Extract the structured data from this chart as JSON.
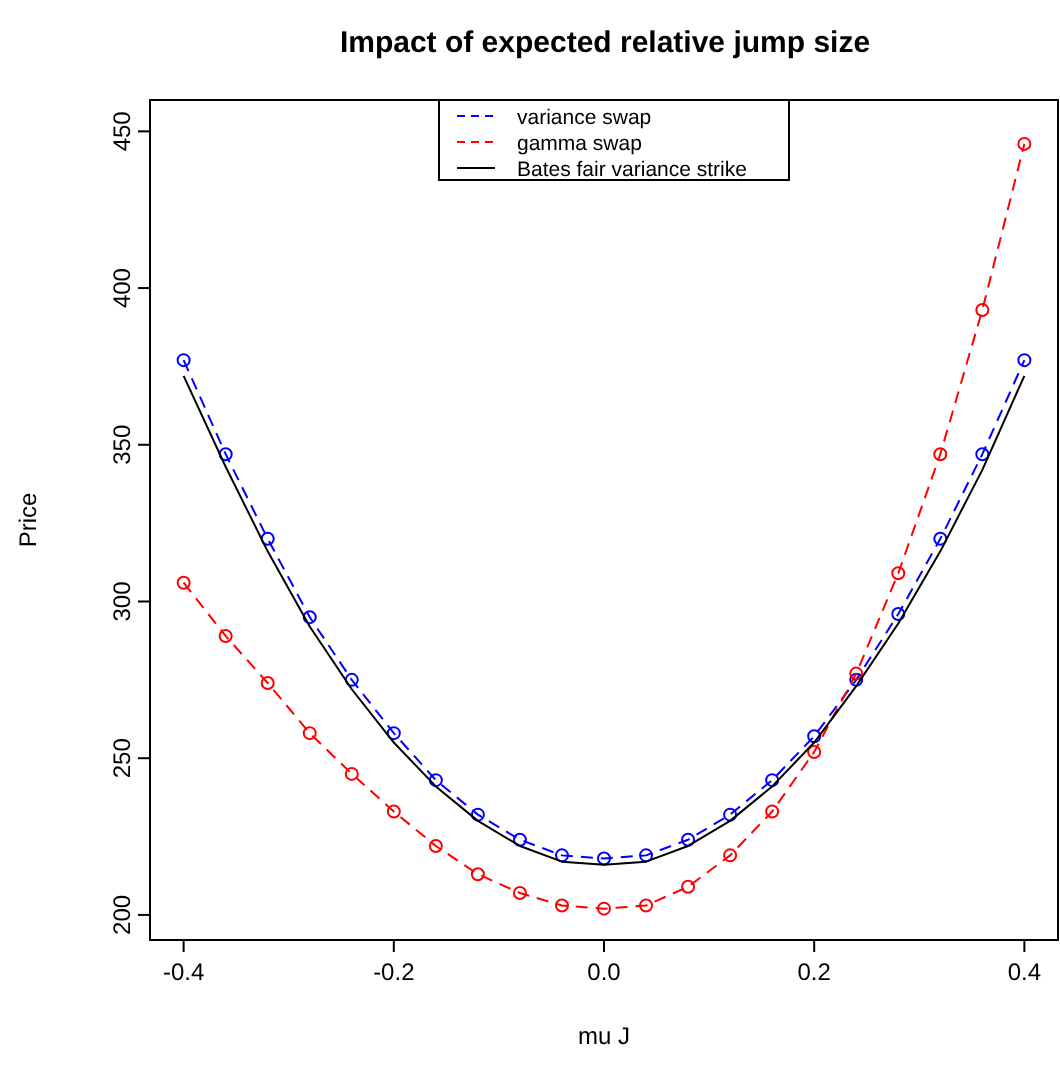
{
  "chart_data": {
    "type": "line",
    "title": "Impact of expected relative jump size",
    "xlabel": "mu J",
    "ylabel": "Price",
    "x": [
      -0.4,
      -0.36,
      -0.32,
      -0.28,
      -0.24,
      -0.2,
      -0.16,
      -0.12,
      -0.08,
      -0.04,
      0,
      0.04,
      0.08,
      0.12,
      0.16,
      0.2,
      0.24,
      0.28,
      0.32,
      0.36,
      0.4
    ],
    "xlim": [
      -0.432,
      0.432
    ],
    "xticks": [
      -0.4,
      -0.2,
      {
        "value": 0,
        "label": "0.0"
      },
      0.2,
      0.4
    ],
    "ylim": [
      192,
      460
    ],
    "yticks": [
      200,
      250,
      300,
      350,
      400,
      450
    ],
    "grid": false,
    "legend": "top",
    "series": [
      {
        "name": "variance swap",
        "color": "#0000ff",
        "marker": "circle",
        "line_style": "dashed",
        "values": [
          377,
          347,
          320,
          295,
          275,
          258,
          243,
          232,
          224,
          219,
          218,
          219,
          224,
          232,
          243,
          257,
          275,
          296,
          320,
          347,
          377
        ]
      },
      {
        "name": "gamma swap",
        "color": "#ff0000",
        "marker": "circle",
        "line_style": "dashed",
        "values": [
          306,
          289,
          274,
          258,
          245,
          233,
          222,
          213,
          207,
          203,
          202,
          203,
          209,
          219,
          233,
          252,
          277,
          309,
          347,
          393,
          446
        ]
      },
      {
        "name": "Bates fair variance strike",
        "color": "#000000",
        "marker": "none",
        "line_style": "solid",
        "values": [
          372,
          343,
          316,
          292,
          272,
          255,
          241,
          230,
          222,
          217,
          216,
          217,
          222,
          230,
          241,
          255,
          273,
          293,
          316,
          342,
          372
        ]
      }
    ]
  }
}
